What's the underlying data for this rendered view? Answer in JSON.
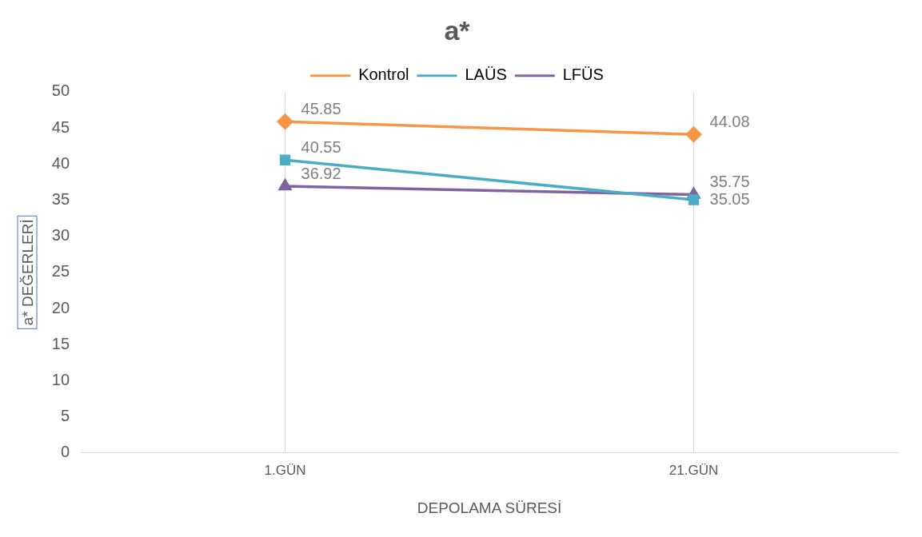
{
  "chart_data": {
    "type": "line",
    "title": "a*",
    "xlabel": "DEPOLAMA SÜRESİ",
    "ylabel": "a* DEĞERLERİ",
    "categories": [
      "1.GÜN",
      "21.GÜN"
    ],
    "series": [
      {
        "name": "Kontrol",
        "color": "#f79646",
        "marker": "diamond",
        "values": [
          45.85,
          44.08
        ]
      },
      {
        "name": "LAÜS",
        "color": "#4bacc6",
        "marker": "square",
        "values": [
          40.55,
          35.05
        ]
      },
      {
        "name": "LFÜS",
        "color": "#8064a2",
        "marker": "triangle",
        "values": [
          36.92,
          35.75
        ]
      }
    ],
    "ylim": [
      0,
      50
    ],
    "yticks": [
      0,
      5,
      10,
      15,
      20,
      25,
      30,
      35,
      40,
      45,
      50
    ],
    "grid": "x",
    "legend": "top",
    "data_labels": true
  }
}
